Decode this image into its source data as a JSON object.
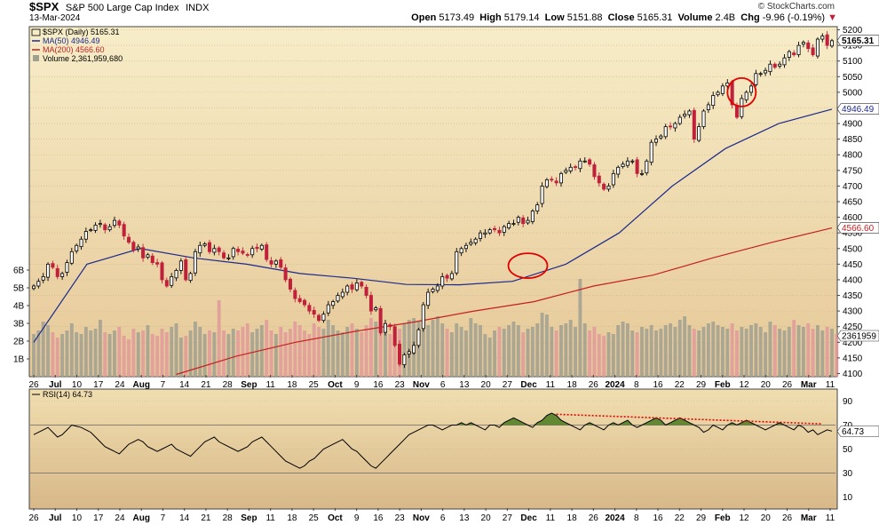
{
  "header": {
    "symbol": "$SPX",
    "description": "S&P 500 Large Cap Index",
    "exchange": "INDX",
    "date": "13-Mar-2024",
    "brand": "© StockCharts.com",
    "open_label": "Open",
    "open": "5173.49",
    "high_label": "High",
    "high": "5179.14",
    "low_label": "Low",
    "low": "5151.88",
    "close_label": "Close",
    "close": "5165.31",
    "volume_label": "Volume",
    "volume": "2.4B",
    "chg_label": "Chg",
    "chg": "-9.96 (-0.19%)"
  },
  "legend": {
    "price": "$SPX (Daily) 5165.31",
    "ma50": "MA(50) 4946.49",
    "ma200": "MA(200) 4566.60",
    "volume": "Volume 2,361,959,680",
    "rsi": "RSI(14) 64.73"
  },
  "tags": {
    "close": "5165.31",
    "ma50": "4946.49",
    "ma200": "4566.60",
    "volume": "2361959",
    "rsi": "64.73"
  },
  "colors": {
    "up": "#000000",
    "down": "#c0203a",
    "ma50": "#1c2a8c",
    "ma200": "#c42020",
    "volume_up": "#a0a090",
    "volume_down": "#e09a9a",
    "rsi_fill": "#4a7a20",
    "annotation": "#e00000"
  },
  "chart_data": [
    {
      "type": "candlestick",
      "title": "$SPX (Daily)",
      "x_ticks": [
        "26",
        "Jul",
        "10",
        "17",
        "24",
        "Aug",
        "7",
        "14",
        "21",
        "28",
        "Sep",
        "11",
        "18",
        "25",
        "Oct",
        "9",
        "16",
        "23",
        "Nov",
        "6",
        "13",
        "20",
        "27",
        "Dec",
        "11",
        "18",
        "26",
        "2024",
        "8",
        "16",
        "22",
        "29",
        "Feb",
        "12",
        "20",
        "26",
        "Mar",
        "11"
      ],
      "y_ticks": [
        4100,
        4150,
        4200,
        4250,
        4300,
        4350,
        4400,
        4450,
        4500,
        4550,
        4600,
        4650,
        4700,
        4750,
        4800,
        4850,
        4900,
        4950,
        5000,
        5050,
        5100,
        5150,
        5200
      ],
      "volume_ticks": [
        "1B",
        "2B",
        "3B",
        "4B",
        "5B",
        "6B"
      ],
      "ylim": [
        4090,
        5210
      ],
      "series": [
        {
          "name": "$SPX",
          "values": [
            4380,
            4395,
            4410,
            4450,
            4440,
            4410,
            4420,
            4455,
            4490,
            4510,
            4530,
            4555,
            4560,
            4575,
            4580,
            4560,
            4570,
            4590,
            4575,
            4540,
            4520,
            4495,
            4505,
            4470,
            4480,
            4455,
            4450,
            4400,
            4380,
            4410,
            4430,
            4460,
            4400,
            4420,
            4490,
            4510,
            4515,
            4490,
            4500,
            4490,
            4470,
            4470,
            4500,
            4490,
            4485,
            4480,
            4500,
            4500,
            4510,
            4465,
            4450,
            4460,
            4440,
            4400,
            4370,
            4340,
            4330,
            4320,
            4300,
            4290,
            4270,
            4290,
            4320,
            4330,
            4350,
            4360,
            4380,
            4370,
            4390,
            4380,
            4350,
            4300,
            4310,
            4230,
            4260,
            4250,
            4190,
            4130,
            4160,
            4170,
            4190,
            4240,
            4320,
            4360,
            4370,
            4380,
            4410,
            4405,
            4420,
            4490,
            4500,
            4510,
            4520,
            4530,
            4550,
            4550,
            4560,
            4560,
            4550,
            4570,
            4580,
            4580,
            4600,
            4580,
            4590,
            4620,
            4640,
            4700,
            4720,
            4720,
            4710,
            4740,
            4750,
            4760,
            4760,
            4780,
            4780,
            4770,
            4730,
            4710,
            4690,
            4700,
            4740,
            4760,
            4770,
            4780,
            4780,
            4740,
            4740,
            4780,
            4840,
            4850,
            4860,
            4890,
            4890,
            4900,
            4920,
            4930,
            4940,
            4850,
            4890,
            4940,
            4960,
            4990,
            5000,
            5020,
            5030,
            4960,
            4920,
            4980,
            5000,
            5020,
            5060,
            5060,
            5070,
            5090,
            5080,
            5090,
            5110,
            5130,
            5120,
            5150,
            5160,
            5140,
            5120,
            5170,
            5180,
            5150,
            5165
          ]
        },
        {
          "name": "MA(50)",
          "values": [
            4200,
            4450,
            4500,
            4470,
            4450,
            4420,
            4405,
            4385,
            4384,
            4395,
            4450,
            4550,
            4700,
            4820,
            4900,
            4946
          ]
        },
        {
          "name": "MA(200)",
          "values": [
            4097,
            4155,
            4200,
            4235,
            4265,
            4300,
            4330,
            4380,
            4415,
            4470,
            4520,
            4566
          ]
        },
        {
          "name": "Volume",
          "values": [
            2.4,
            2.6,
            3.1,
            2.9,
            2.5,
            2.2,
            2.4,
            2.6,
            3.0,
            2.5,
            2.4,
            2.8,
            2.6,
            2.7,
            3.2,
            2.5,
            2.4,
            2.6,
            2.8,
            2.3,
            2.1,
            2.7,
            2.5,
            2.6,
            2.9,
            2.4,
            2.3,
            2.7,
            2.5,
            2.8,
            3.0,
            2.2,
            2.3,
            2.6,
            3.1,
            2.8,
            2.4,
            2.6,
            2.5,
            4.3,
            2.6,
            2.4,
            2.7,
            2.6,
            2.8,
            3.0,
            2.5,
            2.7,
            2.9,
            3.2,
            2.6,
            2.4,
            2.8,
            2.5,
            2.7,
            3.1,
            2.9,
            2.6,
            2.4,
            3.0,
            2.8,
            2.7,
            3.2,
            2.9,
            2.6,
            2.5,
            2.8,
            3.0,
            2.7,
            2.5,
            2.9,
            3.3,
            3.1,
            3.0,
            2.8,
            2.4,
            2.6,
            2.7,
            3.0,
            3.2,
            3.3,
            3.1,
            3.0,
            2.9,
            3.2,
            3.4,
            3.0,
            2.7,
            2.5,
            3.0,
            2.8,
            2.6,
            3.3,
            3.0,
            2.9,
            2.4,
            2.2,
            2.6,
            2.8,
            2.7,
            2.9,
            3.1,
            2.9,
            2.5,
            2.7,
            2.8,
            3.0,
            3.6,
            3.5,
            2.8,
            2.6,
            2.9,
            3.0,
            3.2,
            2.8,
            5.5,
            3.0,
            2.6,
            2.8,
            2.4,
            2.3,
            2.5,
            2.4,
            2.9,
            3.1,
            3.0,
            2.6,
            2.5,
            2.8,
            2.7,
            2.9,
            2.6,
            2.7,
            2.9,
            3.0,
            2.8,
            3.2,
            3.4,
            2.9,
            2.7,
            2.6,
            2.8,
            3.0,
            3.1,
            2.9,
            2.8,
            2.7,
            3.0,
            2.6,
            2.8,
            2.7,
            2.9,
            3.0,
            2.8,
            2.5,
            3.1,
            2.9,
            2.7,
            2.6,
            2.8,
            3.2,
            2.9,
            2.8,
            3.0,
            2.7,
            2.9,
            2.6,
            2.8,
            2.7,
            2.4
          ]
        }
      ]
    },
    {
      "type": "line",
      "title": "RSI(14)",
      "y_ticks": [
        10,
        30,
        50,
        70,
        90
      ],
      "ylim": [
        0,
        100
      ],
      "series": [
        {
          "name": "RSI(14)",
          "values": [
            62,
            64,
            66,
            68,
            64,
            60,
            62,
            66,
            70,
            69,
            68,
            66,
            64,
            60,
            56,
            52,
            50,
            48,
            46,
            50,
            54,
            56,
            58,
            56,
            52,
            50,
            48,
            50,
            52,
            54,
            50,
            48,
            46,
            44,
            48,
            52,
            56,
            58,
            60,
            56,
            54,
            52,
            50,
            48,
            50,
            52,
            56,
            58,
            60,
            56,
            52,
            48,
            44,
            40,
            38,
            36,
            34,
            36,
            40,
            42,
            46,
            50,
            52,
            54,
            56,
            58,
            54,
            50,
            48,
            44,
            40,
            36,
            34,
            38,
            42,
            46,
            50,
            54,
            58,
            62,
            64,
            66,
            68,
            70,
            70,
            68,
            66,
            68,
            70,
            70,
            72,
            70,
            72,
            70,
            68,
            66,
            70,
            70,
            68,
            72,
            74,
            76,
            74,
            72,
            70,
            68,
            72,
            74,
            78,
            80,
            78,
            74,
            72,
            70,
            68,
            66,
            70,
            72,
            70,
            68,
            66,
            70,
            72,
            70,
            72,
            74,
            70,
            68,
            70,
            72,
            74,
            76,
            74,
            70,
            72,
            74,
            76,
            74,
            72,
            70,
            68,
            64,
            66,
            70,
            68,
            66,
            70,
            72,
            70,
            72,
            74,
            72,
            70,
            68,
            66,
            68,
            70,
            72,
            70,
            68,
            66,
            70,
            68,
            64,
            66,
            62,
            64,
            66,
            65
          ]
        }
      ]
    }
  ]
}
